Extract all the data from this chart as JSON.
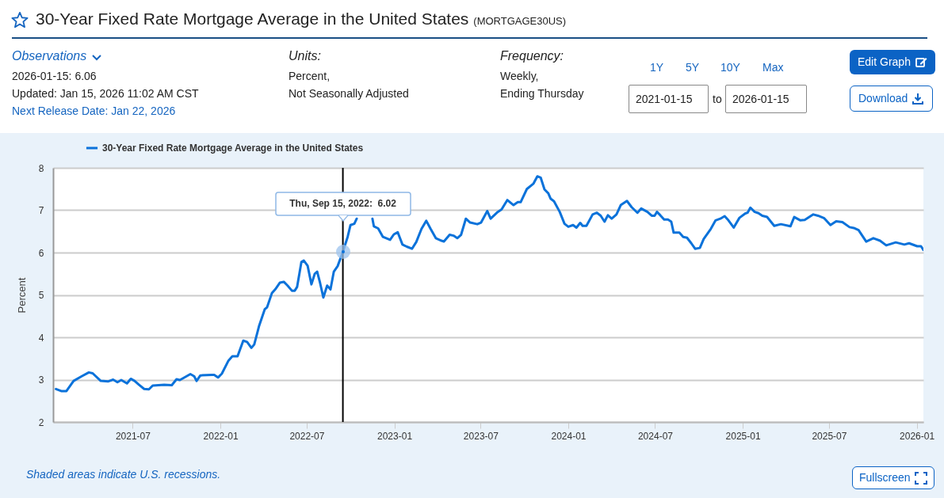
{
  "chart_data": {
    "type": "line",
    "title": "30-Year Fixed Rate Mortgage Average in the United States",
    "subtitle": "(MORTGAGE30US)",
    "ylabel": "Percent",
    "xlim": [
      "2021-01-15",
      "2026-01-15"
    ],
    "xticks": [
      "2021-07",
      "2022-01",
      "2022-07",
      "2023-01",
      "2023-07",
      "2024-01",
      "2024-07",
      "2025-01",
      "2025-07",
      "2026-01"
    ],
    "ylim": [
      2,
      8
    ],
    "yticks": [
      2,
      3,
      4,
      5,
      6,
      7,
      8
    ],
    "grid": "y",
    "legend": "top left",
    "marker": "none",
    "line_style": "solid",
    "ref_lines": [
      {
        "axis": "x",
        "value": "2022-09-15",
        "color": "#000000"
      }
    ],
    "annotations": [
      "Observations",
      "2026-01-15: 6.06",
      "Updated: Jan 15, 2026 11:02 AM CST",
      "Next Release Date: Jan 22, 2026",
      "Units:",
      "Percent,",
      "Not Seasonally Adjusted",
      "Frequency:",
      "Weekly,",
      "Ending Thursday",
      "1Y",
      "5Y",
      "10Y",
      "Max",
      "2021-01-15",
      "to",
      "2026-01-15",
      "Edit Graph",
      "Download",
      "Shaded areas indicate U.S. recessions.",
      "Fullscreen",
      "Thu, Sep 15, 2022:  6.02"
    ],
    "series": [
      {
        "name": "30-Year Fixed Rate Mortgage Average in the United States",
        "color": "#0b72da",
        "x": [
          "2021-01-21",
          "2021-02-01",
          "2021-02-12",
          "2021-02-27",
          "2021-03-16",
          "2021-03-31",
          "2021-04-08",
          "2021-04-25",
          "2021-05-11",
          "2021-05-21",
          "2021-05-30",
          "2021-06-07",
          "2021-06-19",
          "2021-06-27",
          "2021-07-05",
          "2021-07-14",
          "2021-07-25",
          "2021-08-04",
          "2021-08-12",
          "2021-09-05",
          "2021-09-21",
          "2021-10-01",
          "2021-10-08",
          "2021-10-30",
          "2021-11-07",
          "2021-11-12",
          "2021-11-20",
          "2021-12-14",
          "2021-12-19",
          "2021-12-27",
          "2022-01-04",
          "2022-01-18",
          "2022-01-26",
          "2022-02-06",
          "2022-02-18",
          "2022-02-26",
          "2022-03-07",
          "2022-03-13",
          "2022-03-23",
          "2022-04-04",
          "2022-04-09",
          "2022-04-19",
          "2022-04-26",
          "2022-05-06",
          "2022-05-14",
          "2022-05-22",
          "2022-05-31",
          "2022-06-06",
          "2022-06-11",
          "2022-06-20",
          "2022-06-25",
          "2022-07-03",
          "2022-07-11",
          "2022-07-18",
          "2022-07-23",
          "2022-07-29",
          "2022-08-05",
          "2022-08-13",
          "2022-08-20",
          "2022-08-27",
          "2022-09-04",
          "2022-09-15",
          "2022-09-25",
          "2022-10-01",
          "2022-10-09",
          "2022-10-14",
          "2022-10-27",
          "2022-11-16",
          "2022-11-19",
          "2022-11-28",
          "2022-12-08",
          "2022-12-23",
          "2022-12-31",
          "2023-01-08",
          "2023-01-18",
          "2023-01-27",
          "2023-02-07",
          "2023-02-16",
          "2023-02-27",
          "2023-03-09",
          "2023-03-18",
          "2023-03-29",
          "2023-04-10",
          "2023-04-15",
          "2023-04-27",
          "2023-05-05",
          "2023-05-13",
          "2023-05-21",
          "2023-05-31",
          "2023-06-09",
          "2023-06-24",
          "2023-07-02",
          "2023-07-15",
          "2023-07-22",
          "2023-08-06",
          "2023-08-14",
          "2023-08-26",
          "2023-09-08",
          "2023-09-17",
          "2023-09-23",
          "2023-10-06",
          "2023-10-20",
          "2023-10-28",
          "2023-11-04",
          "2023-11-12",
          "2023-11-20",
          "2023-11-25",
          "2023-12-02",
          "2023-12-14",
          "2023-12-24",
          "2024-01-01",
          "2024-01-11",
          "2024-01-18",
          "2024-01-26",
          "2024-01-31",
          "2024-02-08",
          "2024-02-21",
          "2024-03-01",
          "2024-03-09",
          "2024-03-17",
          "2024-03-24",
          "2024-04-01",
          "2024-04-11",
          "2024-04-20",
          "2024-05-03",
          "2024-05-13",
          "2024-05-25",
          "2024-06-02",
          "2024-06-15",
          "2024-06-24",
          "2024-06-30",
          "2024-07-05",
          "2024-07-12",
          "2024-07-20",
          "2024-07-28",
          "2024-08-04",
          "2024-08-09",
          "2024-08-21",
          "2024-08-29",
          "2024-09-06",
          "2024-09-15",
          "2024-09-23",
          "2024-10-03",
          "2024-10-11",
          "2024-10-26",
          "2024-11-05",
          "2024-11-15",
          "2024-11-24",
          "2024-12-02",
          "2024-12-13",
          "2024-12-25",
          "2025-01-06",
          "2025-01-11",
          "2025-01-17",
          "2025-01-26",
          "2025-02-03",
          "2025-02-11",
          "2025-02-21",
          "2025-03-08",
          "2025-03-22",
          "2025-04-11",
          "2025-04-19",
          "2025-05-02",
          "2025-05-11",
          "2025-05-29",
          "2025-06-08",
          "2025-06-21",
          "2025-07-04",
          "2025-07-16",
          "2025-07-29",
          "2025-08-13",
          "2025-08-22",
          "2025-09-01",
          "2025-09-17",
          "2025-10-02",
          "2025-10-16",
          "2025-10-29",
          "2025-11-18",
          "2025-12-06",
          "2025-12-16",
          "2026-01-02",
          "2026-01-10",
          "2026-01-15"
        ],
        "values": [
          2.78,
          2.73,
          2.73,
          2.97,
          3.08,
          3.17,
          3.15,
          2.97,
          2.96,
          3.0,
          2.94,
          2.99,
          2.91,
          3.02,
          2.97,
          2.88,
          2.78,
          2.77,
          2.86,
          2.88,
          2.87,
          3.01,
          2.99,
          3.13,
          3.08,
          2.97,
          3.1,
          3.11,
          3.11,
          3.05,
          3.14,
          3.45,
          3.55,
          3.55,
          3.92,
          3.89,
          3.75,
          3.83,
          4.26,
          4.66,
          4.71,
          5.04,
          5.13,
          5.29,
          5.31,
          5.22,
          5.1,
          5.1,
          5.19,
          5.78,
          5.81,
          5.69,
          5.25,
          5.5,
          5.55,
          5.29,
          4.94,
          5.22,
          5.13,
          5.55,
          5.68,
          6.02,
          6.37,
          6.65,
          6.68,
          6.8,
          null,
          6.8,
          6.62,
          6.57,
          6.37,
          6.3,
          6.43,
          6.48,
          6.19,
          6.14,
          6.09,
          6.25,
          6.56,
          6.75,
          6.56,
          6.34,
          6.28,
          6.26,
          6.42,
          6.4,
          6.34,
          6.42,
          6.8,
          6.71,
          6.67,
          6.71,
          6.98,
          6.8,
          6.96,
          7.02,
          7.24,
          7.12,
          7.19,
          7.19,
          7.5,
          7.63,
          7.8,
          7.77,
          7.49,
          7.4,
          7.27,
          7.21,
          6.96,
          6.68,
          6.61,
          6.65,
          6.59,
          6.7,
          6.63,
          6.63,
          6.9,
          6.94,
          6.87,
          6.73,
          6.88,
          6.8,
          6.9,
          7.12,
          7.22,
          7.07,
          6.94,
          7.04,
          6.96,
          6.87,
          6.87,
          6.96,
          6.88,
          6.78,
          6.78,
          6.73,
          6.47,
          6.47,
          6.37,
          6.35,
          6.22,
          6.09,
          6.11,
          6.32,
          6.56,
          6.76,
          6.8,
          6.86,
          6.76,
          6.59,
          6.82,
          6.92,
          6.94,
          7.06,
          6.96,
          6.93,
          6.87,
          6.84,
          6.63,
          6.67,
          6.62,
          6.84,
          6.76,
          6.77,
          6.9,
          6.87,
          6.81,
          6.65,
          6.74,
          6.72,
          6.6,
          6.58,
          6.53,
          6.26,
          6.34,
          6.28,
          6.17,
          6.24,
          6.19,
          6.22,
          6.15,
          6.15,
          6.06
        ]
      }
    ]
  }
}
